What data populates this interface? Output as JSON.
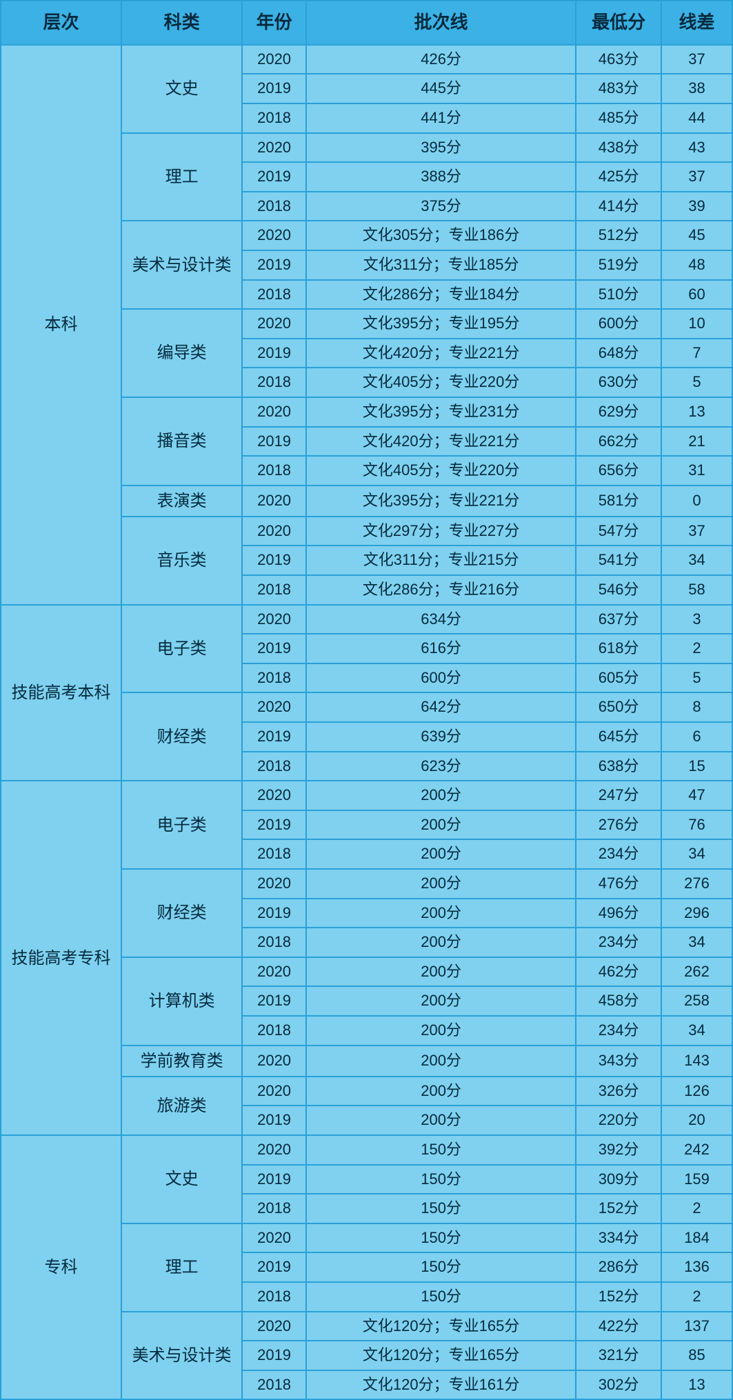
{
  "headers": {
    "level": "层次",
    "category": "科类",
    "year": "年份",
    "batch": "批次线",
    "min": "最低分",
    "diff": "线差"
  },
  "levels": [
    {
      "name": "本科",
      "categories": [
        {
          "name": "文史",
          "rows": [
            {
              "year": "2020",
              "batch": "426分",
              "min": "463分",
              "diff": "37"
            },
            {
              "year": "2019",
              "batch": "445分",
              "min": "483分",
              "diff": "38"
            },
            {
              "year": "2018",
              "batch": "441分",
              "min": "485分",
              "diff": "44"
            }
          ]
        },
        {
          "name": "理工",
          "rows": [
            {
              "year": "2020",
              "batch": "395分",
              "min": "438分",
              "diff": "43"
            },
            {
              "year": "2019",
              "batch": "388分",
              "min": "425分",
              "diff": "37"
            },
            {
              "year": "2018",
              "batch": "375分",
              "min": "414分",
              "diff": "39"
            }
          ]
        },
        {
          "name": "美术与设计类",
          "rows": [
            {
              "year": "2020",
              "batch": "文化305分；专业186分",
              "min": "512分",
              "diff": "45"
            },
            {
              "year": "2019",
              "batch": "文化311分；专业185分",
              "min": "519分",
              "diff": "48"
            },
            {
              "year": "2018",
              "batch": "文化286分；专业184分",
              "min": "510分",
              "diff": "60"
            }
          ]
        },
        {
          "name": "编导类",
          "rows": [
            {
              "year": "2020",
              "batch": "文化395分；专业195分",
              "min": "600分",
              "diff": "10"
            },
            {
              "year": "2019",
              "batch": "文化420分；专业221分",
              "min": "648分",
              "diff": "7"
            },
            {
              "year": "2018",
              "batch": "文化405分；专业220分",
              "min": "630分",
              "diff": "5"
            }
          ]
        },
        {
          "name": "播音类",
          "rows": [
            {
              "year": "2020",
              "batch": "文化395分；专业231分",
              "min": "629分",
              "diff": "13"
            },
            {
              "year": "2019",
              "batch": "文化420分；专业221分",
              "min": "662分",
              "diff": "21"
            },
            {
              "year": "2018",
              "batch": "文化405分；专业220分",
              "min": "656分",
              "diff": "31"
            }
          ]
        },
        {
          "name": "表演类",
          "rows": [
            {
              "year": "2020",
              "batch": "文化395分；专业221分",
              "min": "581分",
              "diff": "0"
            }
          ]
        },
        {
          "name": "音乐类",
          "rows": [
            {
              "year": "2020",
              "batch": "文化297分；专业227分",
              "min": "547分",
              "diff": "37"
            },
            {
              "year": "2019",
              "batch": "文化311分；专业215分",
              "min": "541分",
              "diff": "34"
            },
            {
              "year": "2018",
              "batch": "文化286分；专业216分",
              "min": "546分",
              "diff": "58"
            }
          ]
        }
      ]
    },
    {
      "name": "技能高考本科",
      "categories": [
        {
          "name": "电子类",
          "rows": [
            {
              "year": "2020",
              "batch": "634分",
              "min": "637分",
              "diff": "3"
            },
            {
              "year": "2019",
              "batch": "616分",
              "min": "618分",
              "diff": "2"
            },
            {
              "year": "2018",
              "batch": "600分",
              "min": "605分",
              "diff": "5"
            }
          ]
        },
        {
          "name": "财经类",
          "rows": [
            {
              "year": "2020",
              "batch": "642分",
              "min": "650分",
              "diff": "8"
            },
            {
              "year": "2019",
              "batch": "639分",
              "min": "645分",
              "diff": "6"
            },
            {
              "year": "2018",
              "batch": "623分",
              "min": "638分",
              "diff": "15"
            }
          ]
        }
      ]
    },
    {
      "name": "技能高考专科",
      "categories": [
        {
          "name": "电子类",
          "rows": [
            {
              "year": "2020",
              "batch": "200分",
              "min": "247分",
              "diff": "47"
            },
            {
              "year": "2019",
              "batch": "200分",
              "min": "276分",
              "diff": "76"
            },
            {
              "year": "2018",
              "batch": "200分",
              "min": "234分",
              "diff": "34"
            }
          ]
        },
        {
          "name": "财经类",
          "rows": [
            {
              "year": "2020",
              "batch": "200分",
              "min": "476分",
              "diff": "276"
            },
            {
              "year": "2019",
              "batch": "200分",
              "min": "496分",
              "diff": "296"
            },
            {
              "year": "2018",
              "batch": "200分",
              "min": "234分",
              "diff": "34"
            }
          ]
        },
        {
          "name": "计算机类",
          "rows": [
            {
              "year": "2020",
              "batch": "200分",
              "min": "462分",
              "diff": "262"
            },
            {
              "year": "2019",
              "batch": "200分",
              "min": "458分",
              "diff": "258"
            },
            {
              "year": "2018",
              "batch": "200分",
              "min": "234分",
              "diff": "34"
            }
          ]
        },
        {
          "name": "学前教育类",
          "rows": [
            {
              "year": "2020",
              "batch": "200分",
              "min": "343分",
              "diff": "143"
            }
          ]
        },
        {
          "name": "旅游类",
          "rows": [
            {
              "year": "2020",
              "batch": "200分",
              "min": "326分",
              "diff": "126"
            },
            {
              "year": "2019",
              "batch": "200分",
              "min": "220分",
              "diff": "20"
            }
          ]
        }
      ]
    },
    {
      "name": "专科",
      "categories": [
        {
          "name": "文史",
          "rows": [
            {
              "year": "2020",
              "batch": "150分",
              "min": "392分",
              "diff": "242"
            },
            {
              "year": "2019",
              "batch": "150分",
              "min": "309分",
              "diff": "159"
            },
            {
              "year": "2018",
              "batch": "150分",
              "min": "152分",
              "diff": "2"
            }
          ]
        },
        {
          "name": "理工",
          "rows": [
            {
              "year": "2020",
              "batch": "150分",
              "min": "334分",
              "diff": "184"
            },
            {
              "year": "2019",
              "batch": "150分",
              "min": "286分",
              "diff": "136"
            },
            {
              "year": "2018",
              "batch": "150分",
              "min": "152分",
              "diff": "2"
            }
          ]
        },
        {
          "name": "美术与设计类",
          "rows": [
            {
              "year": "2020",
              "batch": "文化120分；专业165分",
              "min": "422分",
              "diff": "137"
            },
            {
              "year": "2019",
              "batch": "文化120分；专业165分",
              "min": "321分",
              "diff": "85"
            },
            {
              "year": "2018",
              "batch": "文化120分；专业161分",
              "min": "302分",
              "diff": "13"
            }
          ]
        }
      ]
    }
  ]
}
